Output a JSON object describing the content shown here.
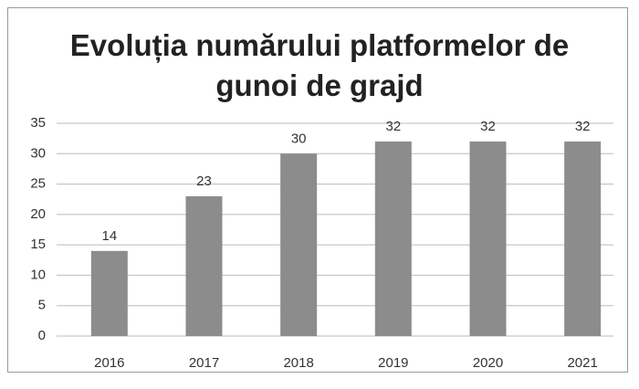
{
  "chart_data": {
    "type": "bar",
    "title": "Evoluția numărului platformelor de gunoi de grajd",
    "categories": [
      "2016",
      "2017",
      "2018",
      "2019",
      "2020",
      "2021"
    ],
    "values": [
      14,
      23,
      30,
      32,
      32,
      32
    ],
    "color": "#8c8c8c",
    "ylim": [
      0,
      35
    ],
    "yticks": [
      0,
      5,
      10,
      15,
      20,
      25,
      30,
      35
    ],
    "grid": true
  }
}
